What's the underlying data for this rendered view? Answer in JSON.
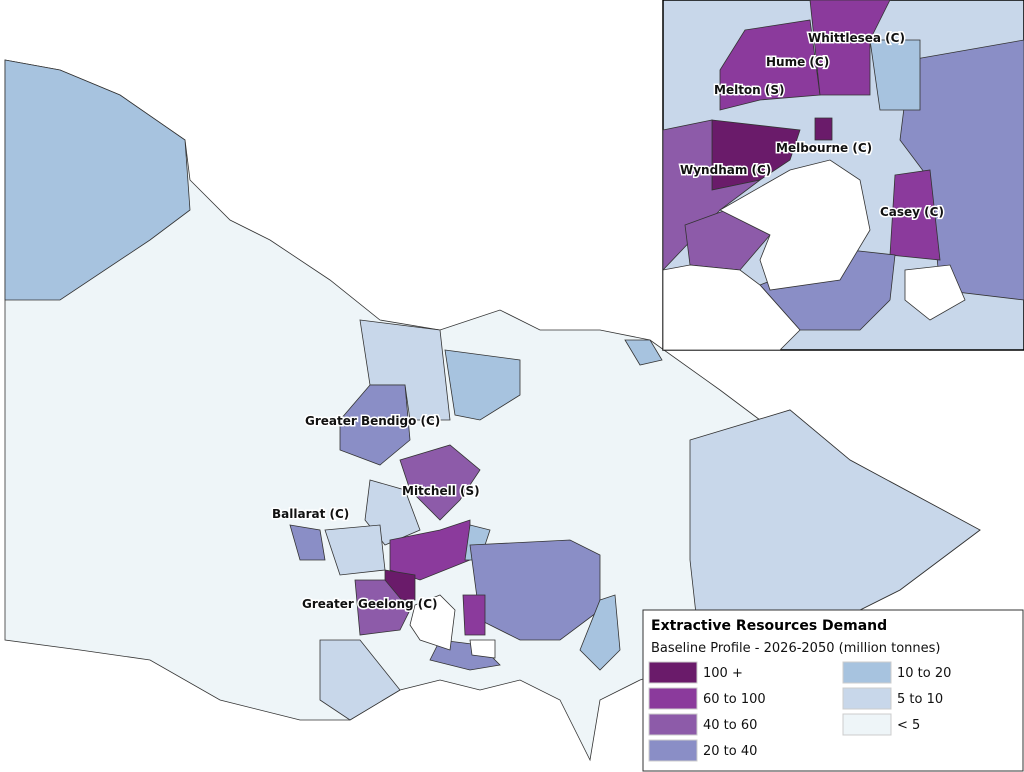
{
  "legend": {
    "title": "Extractive Resources Demand",
    "subtitle": "Baseline Profile - 2026-2050 (million tonnes)",
    "classes": [
      {
        "label": "100 +",
        "color": "#6a1b6a"
      },
      {
        "label": "60 to 100",
        "color": "#8b3a9c"
      },
      {
        "label": "40 to 60",
        "color": "#8d5ba9"
      },
      {
        "label": "20 to 40",
        "color": "#8a8ec6"
      },
      {
        "label": "10 to 20",
        "color": "#a7c3df"
      },
      {
        "label": "5 to 10",
        "color": "#c8d7ea"
      },
      {
        "label": "< 5",
        "color": "#eef5f8"
      }
    ]
  },
  "map_labels": [
    "Greater Bendigo (C)",
    "Mitchell (S)",
    "Ballarat (C)",
    "Greater Geelong (C)"
  ],
  "inset_labels": [
    "Whittlesea (C)",
    "Hume (C)",
    "Melton (S)",
    "Melbourne (C)",
    "Wyndham (C)",
    "Casey (C)"
  ]
}
